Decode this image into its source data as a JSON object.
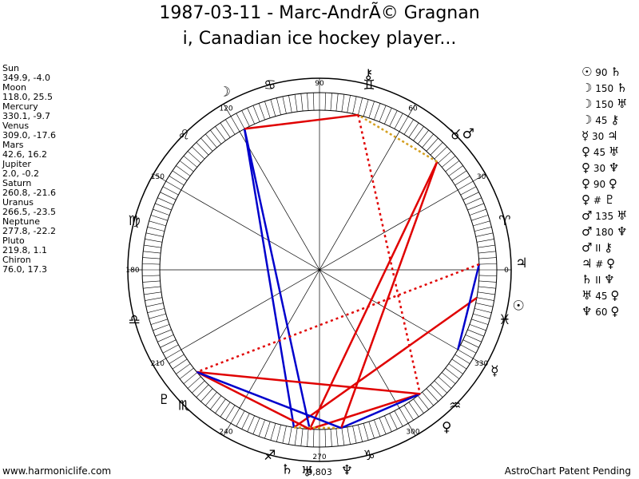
{
  "title": {
    "line1": "1987-03-11 - Marc-AndrÃ© Gragnan",
    "line2": "i, Canadian ice hockey player..."
  },
  "planets": [
    {
      "name": "Sun",
      "coords": "349.9, -4.0",
      "glyph": "☉"
    },
    {
      "name": "Moon",
      "coords": "118.0, 25.5",
      "glyph": "☽"
    },
    {
      "name": "Mercury",
      "coords": "330.1, -9.7",
      "glyph": "☿"
    },
    {
      "name": "Venus",
      "coords": "309.0, -17.6",
      "glyph": "♀"
    },
    {
      "name": "Mars",
      "coords": "42.6, 16.2",
      "glyph": "♂"
    },
    {
      "name": "Jupiter",
      "coords": "2.0, -0.2",
      "glyph": "♃"
    },
    {
      "name": "Saturn",
      "coords": "260.8, -21.6",
      "glyph": "♄"
    },
    {
      "name": "Uranus",
      "coords": "266.5, -23.5",
      "glyph": "♅"
    },
    {
      "name": "Neptune",
      "coords": "277.8, -22.2",
      "glyph": "♆"
    },
    {
      "name": "Pluto",
      "coords": "219.8, 1.1",
      "glyph": "♇"
    },
    {
      "name": "Chiron",
      "coords": "76.0, 17.3",
      "glyph": "⚷"
    }
  ],
  "aspects": [
    {
      "p1": "☉",
      "angle": "90",
      "p2": "♄"
    },
    {
      "p1": "☽",
      "angle": "150",
      "p2": "♄"
    },
    {
      "p1": "☽",
      "angle": "150",
      "p2": "♅"
    },
    {
      "p1": "☽",
      "angle": "45",
      "p2": "⚷"
    },
    {
      "p1": "☿",
      "angle": "30",
      "p2": "♃"
    },
    {
      "p1": "♀",
      "angle": "45",
      "p2": "♅"
    },
    {
      "p1": "♀",
      "angle": "30",
      "p2": "♆"
    },
    {
      "p1": "♀",
      "angle": "90",
      "p2": "♀"
    },
    {
      "p1": "♀",
      "angle": "#",
      "p2": "♇"
    },
    {
      "p1": "♂",
      "angle": "135",
      "p2": "♅"
    },
    {
      "p1": "♂",
      "angle": "180",
      "p2": "♆"
    },
    {
      "p1": "♂",
      "angle": "II",
      "p2": "⚷"
    },
    {
      "p1": "♃",
      "angle": "#",
      "p2": "♀"
    },
    {
      "p1": "♄",
      "angle": "II",
      "p2": "♆"
    },
    {
      "p1": "♅",
      "angle": "45",
      "p2": "♀"
    },
    {
      "p1": "♆",
      "angle": "60",
      "p2": "♀"
    }
  ],
  "wheel": {
    "degree_labels": [
      "0",
      "30",
      "60",
      "90",
      "120",
      "150",
      "180",
      "210",
      "240",
      "270",
      "300",
      "330"
    ],
    "zodiac_glyphs": [
      "♈",
      "♉",
      "♊",
      "♋",
      "♌",
      "♍",
      "♎",
      "♏",
      "♐",
      "♑",
      "♒",
      "♓"
    ],
    "planet_glyphs": [
      {
        "glyph": "♃",
        "lon": 2.0
      },
      {
        "glyph": "☉",
        "lon": 349.9
      },
      {
        "glyph": "☿",
        "lon": 330.1
      },
      {
        "glyph": "♀",
        "lon": 309.0
      },
      {
        "glyph": "♂",
        "lon": 42.6
      },
      {
        "glyph": "⚷",
        "lon": 76.0
      },
      {
        "glyph": "☽",
        "lon": 118.0
      },
      {
        "glyph": "♇",
        "lon": 219.8
      },
      {
        "glyph": "♄",
        "lon": 260.8
      },
      {
        "glyph": "♅",
        "lon": 266.5
      },
      {
        "glyph": "♆",
        "lon": 277.8
      }
    ],
    "bottom_label": "9,803",
    "colors": {
      "red": "#e00000",
      "blue": "#0000cc",
      "gold": "#d4a020",
      "line": "#000000"
    }
  },
  "footer": {
    "left": "www.harmoniclife.com",
    "right": "AstroChart Patent Pending"
  }
}
